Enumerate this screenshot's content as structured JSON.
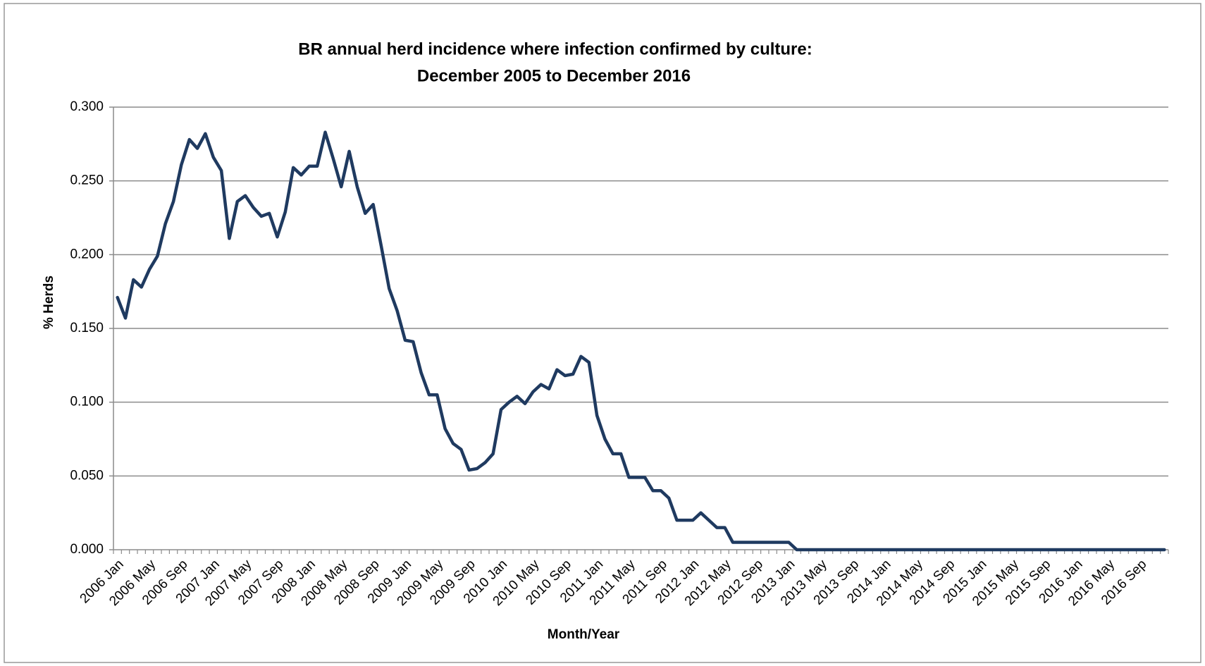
{
  "chart_data": {
    "type": "line",
    "title": [
      "BR annual herd incidence where infection confirmed by culture:",
      "December 2005 to December 2016"
    ],
    "x_label": "Month/Year",
    "y_label": "% Herds",
    "categories": [
      "2006 Jan",
      null,
      null,
      null,
      "2006 May",
      null,
      null,
      null,
      "2006 Sep",
      null,
      null,
      null,
      "2007 Jan",
      null,
      null,
      null,
      "2007 May",
      null,
      null,
      null,
      "2007 Sep",
      null,
      null,
      null,
      "2008 Jan",
      null,
      null,
      null,
      "2008 May",
      null,
      null,
      null,
      "2008 Sep",
      null,
      null,
      null,
      "2009 Jan",
      null,
      null,
      null,
      "2009 May",
      null,
      null,
      null,
      "2009 Sep",
      null,
      null,
      null,
      "2010 Jan",
      null,
      null,
      null,
      "2010 May",
      null,
      null,
      null,
      "2010 Sep",
      null,
      null,
      null,
      "2011 Jan",
      null,
      null,
      null,
      "2011 May",
      null,
      null,
      null,
      "2011 Sep",
      null,
      null,
      null,
      "2012 Jan",
      null,
      null,
      null,
      "2012 May",
      null,
      null,
      null,
      "2012 Sep",
      null,
      null,
      null,
      "2013 Jan",
      null,
      null,
      null,
      "2013 May",
      null,
      null,
      null,
      "2013 Sep",
      null,
      null,
      null,
      "2014 Jan",
      null,
      null,
      null,
      "2014 May",
      null,
      null,
      null,
      "2014 Sep",
      null,
      null,
      null,
      "2015 Jan",
      null,
      null,
      null,
      "2015 May",
      null,
      null,
      null,
      "2015 Sep",
      null,
      null,
      null,
      "2016 Jan",
      null,
      null,
      null,
      "2016 May",
      null,
      null,
      null,
      "2016 Sep",
      null,
      null,
      null
    ],
    "values": [
      0.171,
      0.157,
      0.183,
      0.178,
      0.19,
      0.199,
      0.221,
      0.236,
      0.261,
      0.278,
      0.272,
      0.282,
      0.266,
      0.257,
      0.211,
      0.236,
      0.24,
      0.232,
      0.226,
      0.228,
      0.212,
      0.229,
      0.259,
      0.254,
      0.26,
      0.26,
      0.283,
      0.265,
      0.246,
      0.27,
      0.246,
      0.228,
      0.234,
      0.206,
      0.177,
      0.162,
      0.142,
      0.141,
      0.12,
      0.105,
      0.105,
      0.082,
      0.072,
      0.068,
      0.054,
      0.055,
      0.059,
      0.065,
      0.095,
      0.1,
      0.104,
      0.099,
      0.107,
      0.112,
      0.109,
      0.122,
      0.118,
      0.119,
      0.131,
      0.127,
      0.091,
      0.075,
      0.065,
      0.065,
      0.049,
      0.049,
      0.049,
      0.04,
      0.04,
      0.035,
      0.02,
      0.02,
      0.02,
      0.025,
      0.02,
      0.015,
      0.015,
      0.005,
      0.005,
      0.005,
      0.005,
      0.005,
      0.005,
      0.005,
      0.005,
      0,
      0,
      0,
      0,
      0,
      0,
      0,
      0,
      0,
      0,
      0,
      0,
      0,
      0,
      0,
      0,
      0,
      0,
      0,
      0,
      0,
      0,
      0,
      0,
      0,
      0,
      0,
      0,
      0,
      0,
      0,
      0,
      0,
      0,
      0,
      0,
      0,
      0,
      0,
      0,
      0,
      0,
      0,
      0,
      0,
      0,
      0
    ],
    "color": "#1f3a60",
    "ylim": [
      0,
      0.3
    ],
    "yticks": [
      {
        "value": 0,
        "label": "0.000"
      },
      {
        "value": 0.05,
        "label": "0.050"
      },
      {
        "value": 0.1,
        "label": "0.100"
      },
      {
        "value": 0.15,
        "label": "0.150"
      },
      {
        "value": 0.2,
        "label": "0.200"
      },
      {
        "value": 0.25,
        "label": "0.250"
      },
      {
        "value": 0.3,
        "label": "0.300"
      }
    ],
    "grid": true
  }
}
